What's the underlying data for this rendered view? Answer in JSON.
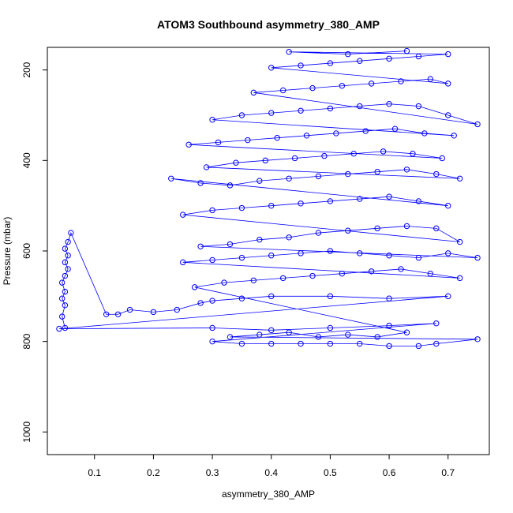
{
  "chart_data": {
    "type": "scatter",
    "title": "ATOM3 Southbound asymmetry_380_AMP",
    "xlabel": "asymmetry_380_AMP",
    "ylabel": "Pressure (mbar)",
    "xlim": [
      0.02,
      0.77
    ],
    "ylim": [
      1050,
      150
    ],
    "y_reversed": true,
    "x_ticks": [
      0.1,
      0.2,
      0.3,
      0.4,
      0.5,
      0.6,
      0.7
    ],
    "x_tick_labels": [
      "0.1",
      "0.2",
      "0.3",
      "0.4",
      "0.5",
      "0.6",
      "0.7"
    ],
    "y_ticks": [
      200,
      400,
      600,
      800,
      1000
    ],
    "y_tick_labels": [
      "200",
      "400",
      "600",
      "800",
      "1000"
    ],
    "grid": false,
    "marker": "open-circle",
    "connected": true,
    "color": "#0000ff",
    "series": [
      {
        "points": [
          [
            0.05,
            770
          ],
          [
            0.045,
            745
          ],
          [
            0.05,
            720
          ],
          [
            0.045,
            705
          ],
          [
            0.05,
            690
          ],
          [
            0.045,
            670
          ],
          [
            0.05,
            655
          ],
          [
            0.055,
            640
          ],
          [
            0.05,
            625
          ],
          [
            0.055,
            610
          ],
          [
            0.05,
            595
          ],
          [
            0.055,
            580
          ],
          [
            0.06,
            560
          ],
          [
            0.12,
            740
          ],
          [
            0.14,
            740
          ],
          [
            0.16,
            730
          ],
          [
            0.2,
            735
          ],
          [
            0.24,
            730
          ],
          [
            0.28,
            715
          ],
          [
            0.3,
            710
          ],
          [
            0.35,
            705
          ],
          [
            0.4,
            700
          ],
          [
            0.5,
            700
          ],
          [
            0.6,
            705
          ],
          [
            0.7,
            700
          ],
          [
            0.04,
            772
          ],
          [
            0.3,
            770
          ],
          [
            0.4,
            775
          ],
          [
            0.5,
            770
          ],
          [
            0.6,
            765
          ],
          [
            0.68,
            760
          ],
          [
            0.3,
            800
          ],
          [
            0.35,
            805
          ],
          [
            0.4,
            805
          ],
          [
            0.45,
            805
          ],
          [
            0.5,
            805
          ],
          [
            0.55,
            805
          ],
          [
            0.6,
            810
          ],
          [
            0.65,
            810
          ],
          [
            0.68,
            805
          ],
          [
            0.75,
            795
          ],
          [
            0.33,
            790
          ],
          [
            0.38,
            785
          ],
          [
            0.43,
            780
          ],
          [
            0.48,
            790
          ],
          [
            0.53,
            785
          ],
          [
            0.58,
            790
          ],
          [
            0.63,
            780
          ],
          [
            0.27,
            680
          ],
          [
            0.32,
            670
          ],
          [
            0.37,
            665
          ],
          [
            0.42,
            660
          ],
          [
            0.47,
            655
          ],
          [
            0.52,
            650
          ],
          [
            0.57,
            645
          ],
          [
            0.62,
            640
          ],
          [
            0.67,
            650
          ],
          [
            0.72,
            660
          ],
          [
            0.25,
            625
          ],
          [
            0.3,
            620
          ],
          [
            0.35,
            615
          ],
          [
            0.4,
            610
          ],
          [
            0.45,
            605
          ],
          [
            0.5,
            600
          ],
          [
            0.55,
            605
          ],
          [
            0.6,
            610
          ],
          [
            0.65,
            615
          ],
          [
            0.7,
            605
          ],
          [
            0.75,
            615
          ],
          [
            0.28,
            590
          ],
          [
            0.33,
            585
          ],
          [
            0.38,
            575
          ],
          [
            0.43,
            570
          ],
          [
            0.48,
            560
          ],
          [
            0.53,
            555
          ],
          [
            0.58,
            550
          ],
          [
            0.63,
            545
          ],
          [
            0.68,
            550
          ],
          [
            0.72,
            580
          ],
          [
            0.25,
            520
          ],
          [
            0.3,
            510
          ],
          [
            0.35,
            505
          ],
          [
            0.4,
            500
          ],
          [
            0.45,
            495
          ],
          [
            0.5,
            490
          ],
          [
            0.55,
            485
          ],
          [
            0.6,
            480
          ],
          [
            0.65,
            490
          ],
          [
            0.7,
            500
          ],
          [
            0.23,
            440
          ],
          [
            0.28,
            450
          ],
          [
            0.33,
            455
          ],
          [
            0.38,
            445
          ],
          [
            0.43,
            440
          ],
          [
            0.48,
            435
          ],
          [
            0.53,
            430
          ],
          [
            0.58,
            425
          ],
          [
            0.63,
            420
          ],
          [
            0.68,
            430
          ],
          [
            0.72,
            440
          ],
          [
            0.29,
            415
          ],
          [
            0.34,
            405
          ],
          [
            0.39,
            400
          ],
          [
            0.44,
            395
          ],
          [
            0.49,
            390
          ],
          [
            0.54,
            385
          ],
          [
            0.59,
            380
          ],
          [
            0.64,
            385
          ],
          [
            0.69,
            395
          ],
          [
            0.26,
            365
          ],
          [
            0.31,
            360
          ],
          [
            0.36,
            355
          ],
          [
            0.41,
            350
          ],
          [
            0.46,
            345
          ],
          [
            0.51,
            340
          ],
          [
            0.56,
            335
          ],
          [
            0.61,
            330
          ],
          [
            0.66,
            340
          ],
          [
            0.71,
            345
          ],
          [
            0.3,
            310
          ],
          [
            0.35,
            300
          ],
          [
            0.4,
            295
          ],
          [
            0.45,
            290
          ],
          [
            0.5,
            285
          ],
          [
            0.55,
            280
          ],
          [
            0.6,
            275
          ],
          [
            0.65,
            280
          ],
          [
            0.7,
            300
          ],
          [
            0.75,
            320
          ],
          [
            0.37,
            250
          ],
          [
            0.42,
            245
          ],
          [
            0.47,
            240
          ],
          [
            0.52,
            235
          ],
          [
            0.57,
            230
          ],
          [
            0.62,
            225
          ],
          [
            0.67,
            220
          ],
          [
            0.7,
            230
          ],
          [
            0.4,
            195
          ],
          [
            0.45,
            190
          ],
          [
            0.5,
            185
          ],
          [
            0.55,
            180
          ],
          [
            0.6,
            175
          ],
          [
            0.65,
            170
          ],
          [
            0.7,
            165
          ],
          [
            0.43,
            160
          ],
          [
            0.53,
            165
          ],
          [
            0.63,
            158
          ]
        ]
      }
    ]
  }
}
